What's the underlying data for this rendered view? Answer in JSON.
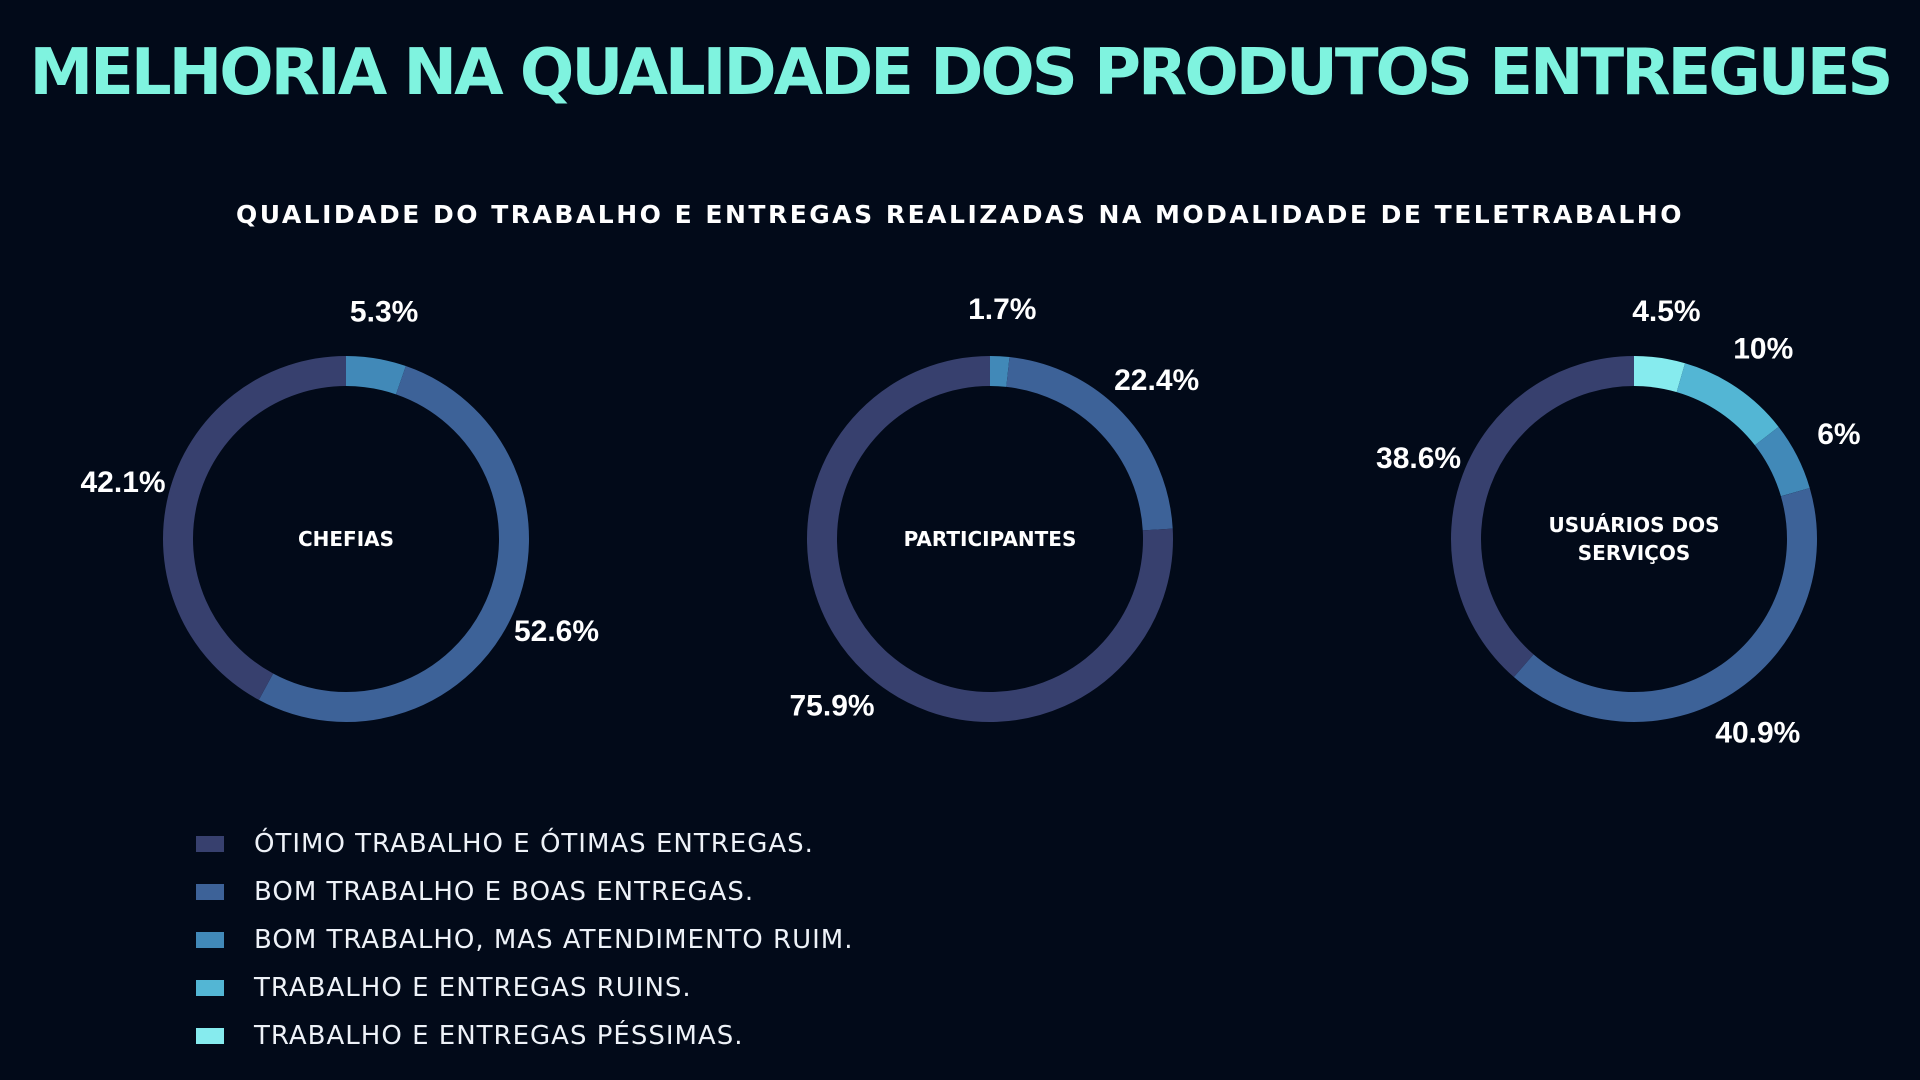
{
  "title": "MELHORIA NA QUALIDADE DOS PRODUTOS ENTREGUES",
  "subtitle": "QUALIDADE DO TRABALHO E ENTREGAS REALIZADAS NA MODALIDADE DE TELETRABALHO",
  "colors": {
    "background": "#020a19",
    "title": "#7ff3df",
    "categories": [
      "#37406e",
      "#3d6298",
      "#4189b8",
      "#53b6d4",
      "#86ebee"
    ]
  },
  "chart_data": {
    "type": "pie",
    "style": "donut",
    "legend_position": "bottom-left",
    "categories": [
      "ÓTIMO TRABALHO E ÓTIMAS ENTREGAS.",
      "BOM TRABALHO E BOAS ENTREGAS.",
      "BOM TRABALHO, MAS ATENDIMENTO RUIM.",
      "TRABALHO E ENTREGAS RUINS.",
      "TRABALHO E ENTREGAS PÉSSIMAS."
    ],
    "charts": [
      {
        "center_label": [
          "CHEFIAS"
        ],
        "values": [
          42.1,
          52.6,
          5.3,
          0,
          0
        ],
        "labels": [
          "42.1%",
          "52.6%",
          "5.3%",
          "",
          ""
        ]
      },
      {
        "center_label": [
          "PARTICIPANTES"
        ],
        "values": [
          75.9,
          22.4,
          1.7,
          0,
          0
        ],
        "labels": [
          "75.9%",
          "22.4%",
          "1.7%",
          "",
          ""
        ]
      },
      {
        "center_label": [
          "USUÁRIOS DOS",
          "SERVIÇOS"
        ],
        "values": [
          38.6,
          40.9,
          6,
          10,
          4.5
        ],
        "labels": [
          "38.6%",
          "40.9%",
          "6%",
          "10%",
          "4.5%"
        ]
      }
    ]
  }
}
